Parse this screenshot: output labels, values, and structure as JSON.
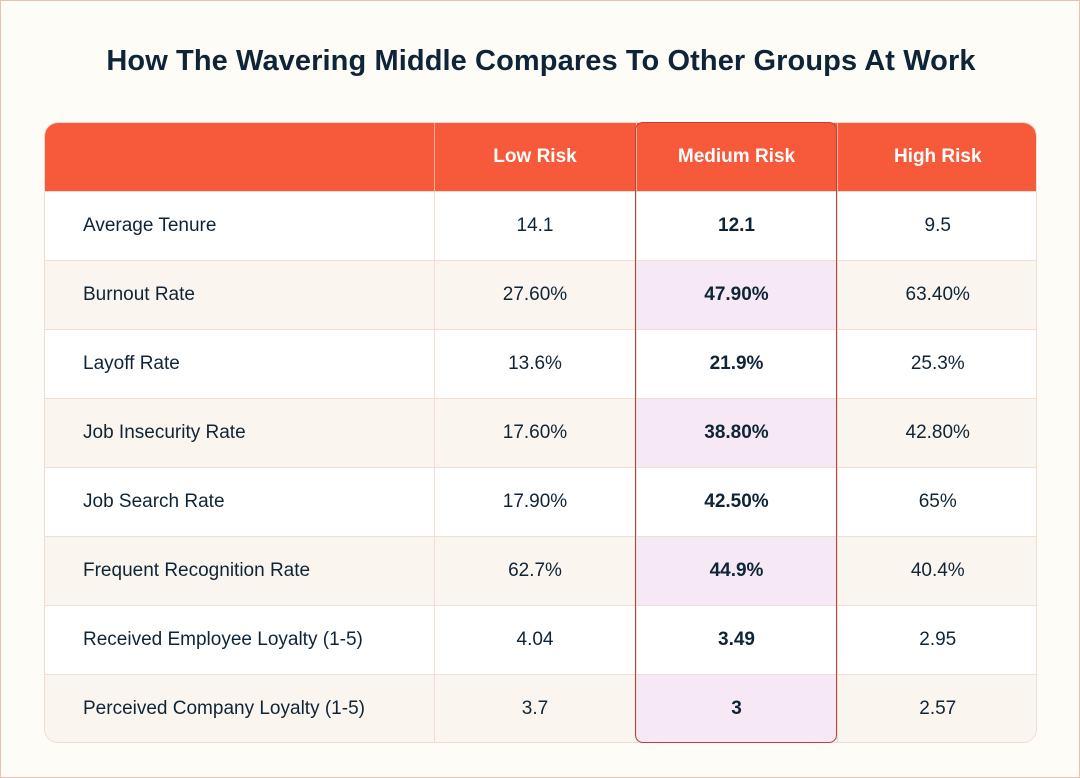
{
  "title": "How The Wavering Middle Compares To Other Groups At Work",
  "colors": {
    "header_bg": "#f65a3a",
    "highlight_border": "#b8423a",
    "highlight_fill": "#f6e9f5",
    "title_text": "#0f2537"
  },
  "chart_data": {
    "type": "table",
    "title": "How The Wavering Middle Compares To Other Groups At Work",
    "columns": [
      "",
      "Low Risk",
      "Medium Risk",
      "High Risk"
    ],
    "highlighted_column": "Medium Risk",
    "rows": [
      {
        "metric": "Average Tenure",
        "low": "14.1",
        "medium": "12.1",
        "high": "9.5"
      },
      {
        "metric": "Burnout Rate",
        "low": "27.60%",
        "medium": "47.90%",
        "high": "63.40%"
      },
      {
        "metric": "Layoff Rate",
        "low": "13.6%",
        "medium": "21.9%",
        "high": "25.3%"
      },
      {
        "metric": "Job Insecurity Rate",
        "low": "17.60%",
        "medium": "38.80%",
        "high": "42.80%"
      },
      {
        "metric": "Job Search Rate",
        "low": "17.90%",
        "medium": "42.50%",
        "high": "65%"
      },
      {
        "metric": "Frequent Recognition Rate",
        "low": "62.7%",
        "medium": "44.9%",
        "high": "40.4%"
      },
      {
        "metric": "Received Employee Loyalty (1-5)",
        "low": "4.04",
        "medium": "3.49",
        "high": "2.95"
      },
      {
        "metric": "Perceived Company  Loyalty (1-5)",
        "low": "3.7",
        "medium": "3",
        "high": "2.57"
      }
    ]
  }
}
